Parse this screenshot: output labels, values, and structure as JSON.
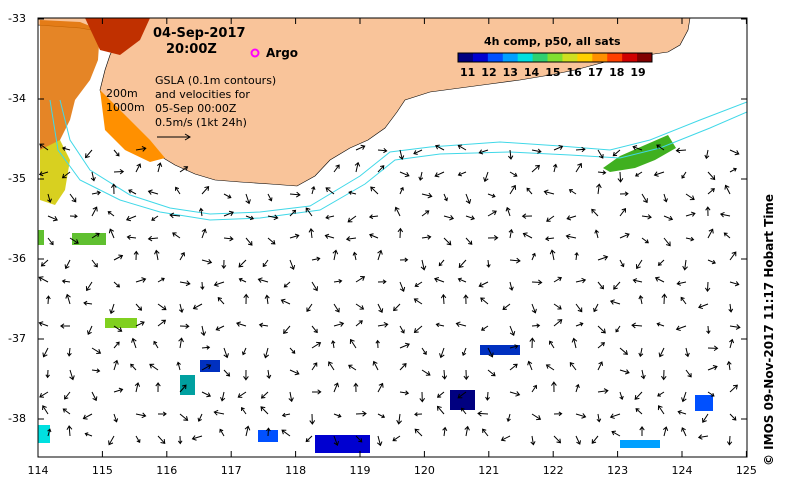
{
  "header": {
    "date": "04-Sep-2017",
    "time": "20:00Z",
    "argo_label": "Argo"
  },
  "annotations": {
    "contour_200": "200m",
    "contour_1000": "1000m",
    "gsla_line1": "GSLA (0.1m contours)",
    "gsla_line2": "and velocities for",
    "gsla_line3": "05-Sep 00:00Z",
    "gsla_line4": "0.5m/s (1kt 24h)"
  },
  "colorbar": {
    "title": "4h comp, p50, all sats",
    "ticks": [
      "11",
      "12",
      "13",
      "14",
      "15",
      "16",
      "17",
      "18",
      "19"
    ],
    "colors": [
      "#000080",
      "#0000d0",
      "#0050ff",
      "#00a0ff",
      "#00e0e0",
      "#30d070",
      "#80e030",
      "#d0e020",
      "#ffd000",
      "#ff9000",
      "#ff4000",
      "#d00000",
      "#800000"
    ]
  },
  "axes": {
    "lat_labels": [
      "-33",
      "-34",
      "-35",
      "-36",
      "-37",
      "-38"
    ],
    "lon_labels": [
      "114",
      "115",
      "116",
      "117",
      "118",
      "119",
      "120",
      "121",
      "122",
      "123",
      "124",
      "125"
    ]
  },
  "credit": "© IMOS 09-Nov-2017 11:17 Hobart Time",
  "colors": {
    "land": "#f9c49a",
    "contour": "#40d8e8",
    "argo": "#ff00ff"
  }
}
